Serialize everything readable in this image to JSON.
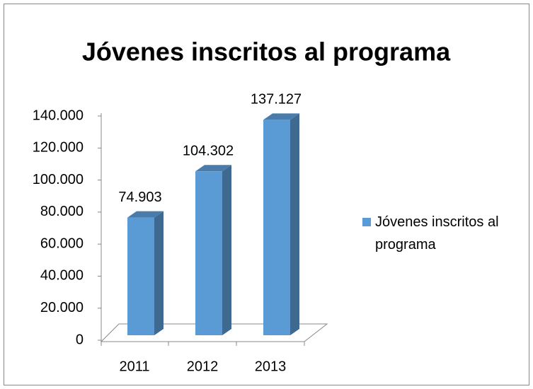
{
  "chart_data": {
    "type": "bar",
    "title": "Jóvenes inscritos al programa",
    "categories": [
      "2011",
      "2012",
      "2013"
    ],
    "series": [
      {
        "name": "Jóvenes inscritos al programa",
        "color": "#5b9bd5",
        "values": [
          74903,
          104302,
          137127
        ],
        "value_labels": [
          "74.903",
          "104.302",
          "137.127"
        ]
      }
    ],
    "ylim": [
      0,
      140000
    ],
    "yticks": [
      0,
      {
        "value": 20000,
        "label": "20.000"
      },
      {
        "value": 40000,
        "label": "40.000"
      },
      {
        "value": 60000,
        "label": "60.000"
      },
      {
        "value": 80000,
        "label": "80.000"
      },
      {
        "value": 100000,
        "label": "100.000"
      },
      {
        "value": 120000,
        "label": "120.000"
      },
      {
        "value": 140000,
        "label": "140.000"
      }
    ],
    "legend": "right"
  }
}
